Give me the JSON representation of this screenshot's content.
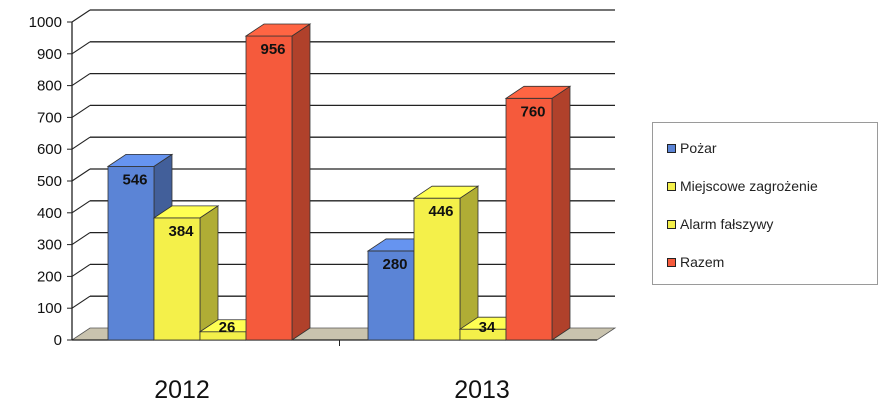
{
  "chart_data": {
    "type": "bar",
    "categories": [
      "2012",
      "2013"
    ],
    "series": [
      {
        "name": "Pożar",
        "values": [
          546,
          280
        ],
        "color": "#5b84d6"
      },
      {
        "name": "Miejscowe zagrożenie",
        "values": [
          384,
          446
        ],
        "color": "#f4f04a"
      },
      {
        "name": "Alarm fałszywy",
        "values": [
          26,
          34
        ],
        "color": "#f4f04a"
      },
      {
        "name": "Razem",
        "values": [
          956,
          760
        ],
        "color": "#f55a3c"
      }
    ],
    "ylim": [
      0,
      1000
    ],
    "yticks": [
      0,
      100,
      200,
      300,
      400,
      500,
      600,
      700,
      800,
      900,
      1000
    ],
    "grid": true,
    "legend_position": "right",
    "three_d": true
  }
}
